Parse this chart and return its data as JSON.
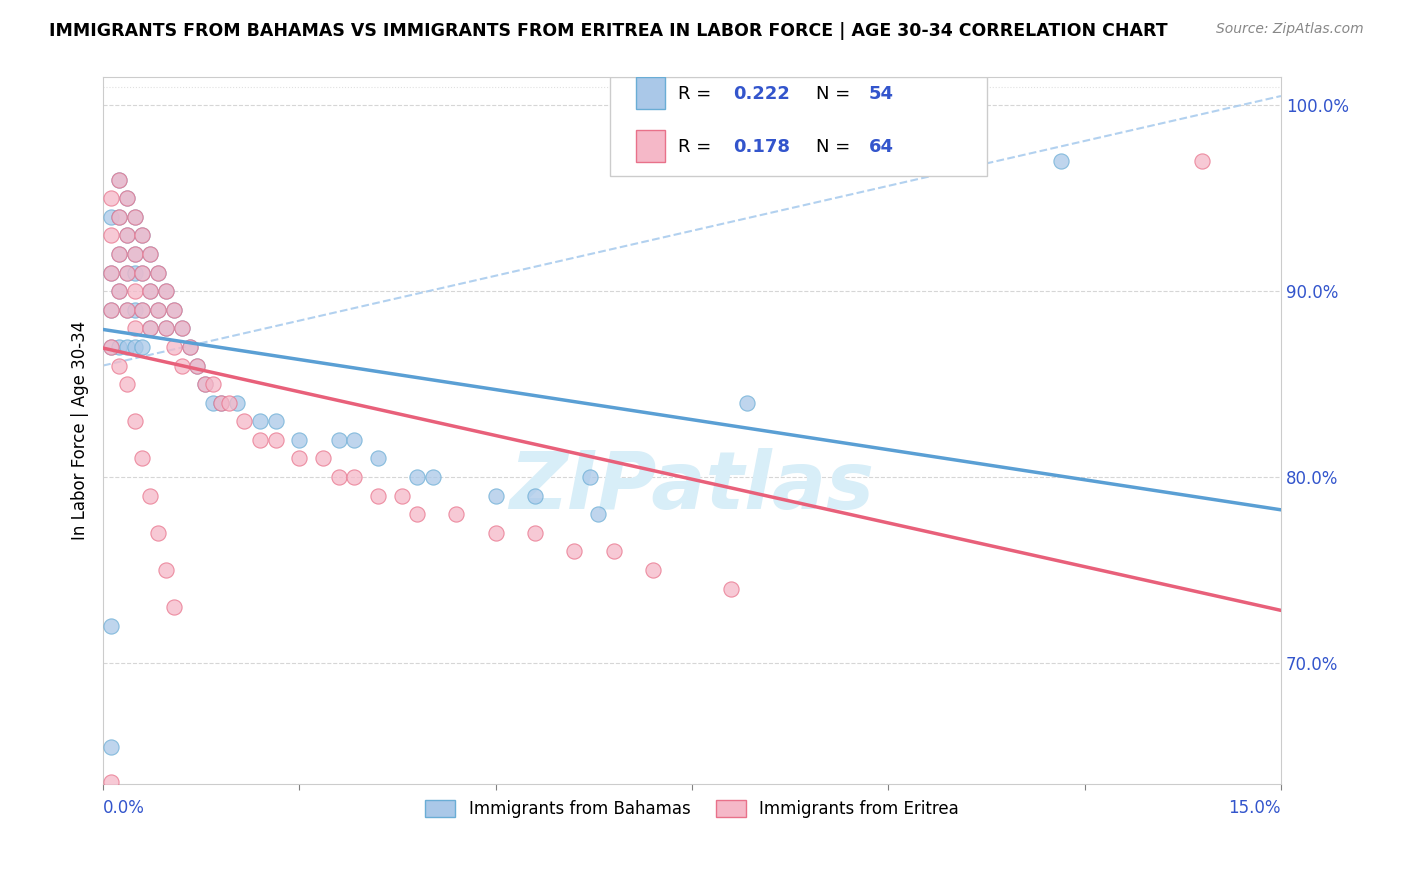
{
  "title": "IMMIGRANTS FROM BAHAMAS VS IMMIGRANTS FROM ERITREA IN LABOR FORCE | AGE 30-34 CORRELATION CHART",
  "source": "Source: ZipAtlas.com",
  "ylabel": "In Labor Force | Age 30-34",
  "xmin": 0.0,
  "xmax": 0.15,
  "ymin": 0.635,
  "ymax": 1.015,
  "y_ticks": [
    0.7,
    0.8,
    0.9,
    1.0
  ],
  "y_tick_labels": [
    "70.0%",
    "80.0%",
    "90.0%",
    "100.0%"
  ],
  "bahamas_R": 0.222,
  "bahamas_N": 54,
  "eritrea_R": 0.178,
  "eritrea_N": 64,
  "bahamas_color": "#aac8e8",
  "eritrea_color": "#f5b8c8",
  "bahamas_edge_color": "#6aadd5",
  "eritrea_edge_color": "#e8718a",
  "bahamas_line_color": "#5a9fd4",
  "eritrea_line_color": "#e8607a",
  "dashed_line_color": "#aaccee",
  "legend_value_color": "#3355cc",
  "watermark_color": "#d8eef8",
  "bahamas_x": [
    0.001,
    0.001,
    0.001,
    0.001,
    0.002,
    0.002,
    0.002,
    0.002,
    0.002,
    0.003,
    0.003,
    0.003,
    0.003,
    0.003,
    0.004,
    0.004,
    0.004,
    0.004,
    0.004,
    0.005,
    0.005,
    0.005,
    0.005,
    0.006,
    0.006,
    0.006,
    0.007,
    0.007,
    0.008,
    0.008,
    0.009,
    0.01,
    0.011,
    0.012,
    0.013,
    0.014,
    0.015,
    0.017,
    0.02,
    0.022,
    0.025,
    0.03,
    0.032,
    0.035,
    0.04,
    0.042,
    0.05,
    0.055,
    0.062,
    0.063,
    0.082,
    0.001,
    0.122,
    0.001
  ],
  "bahamas_y": [
    0.94,
    0.91,
    0.89,
    0.87,
    0.96,
    0.94,
    0.92,
    0.9,
    0.87,
    0.95,
    0.93,
    0.91,
    0.89,
    0.87,
    0.94,
    0.92,
    0.91,
    0.89,
    0.87,
    0.93,
    0.91,
    0.89,
    0.87,
    0.92,
    0.9,
    0.88,
    0.91,
    0.89,
    0.9,
    0.88,
    0.89,
    0.88,
    0.87,
    0.86,
    0.85,
    0.84,
    0.84,
    0.84,
    0.83,
    0.83,
    0.82,
    0.82,
    0.82,
    0.81,
    0.8,
    0.8,
    0.79,
    0.79,
    0.8,
    0.78,
    0.84,
    0.655,
    0.97,
    0.72
  ],
  "eritrea_x": [
    0.001,
    0.001,
    0.001,
    0.001,
    0.002,
    0.002,
    0.002,
    0.002,
    0.003,
    0.003,
    0.003,
    0.003,
    0.004,
    0.004,
    0.004,
    0.004,
    0.005,
    0.005,
    0.005,
    0.006,
    0.006,
    0.006,
    0.007,
    0.007,
    0.008,
    0.008,
    0.009,
    0.009,
    0.01,
    0.01,
    0.011,
    0.012,
    0.013,
    0.014,
    0.015,
    0.016,
    0.018,
    0.02,
    0.022,
    0.025,
    0.028,
    0.03,
    0.032,
    0.035,
    0.038,
    0.04,
    0.045,
    0.05,
    0.055,
    0.06,
    0.065,
    0.07,
    0.08,
    0.001,
    0.002,
    0.003,
    0.004,
    0.005,
    0.006,
    0.007,
    0.008,
    0.009,
    0.001,
    0.14
  ],
  "eritrea_y": [
    0.95,
    0.93,
    0.91,
    0.89,
    0.96,
    0.94,
    0.92,
    0.9,
    0.95,
    0.93,
    0.91,
    0.89,
    0.94,
    0.92,
    0.9,
    0.88,
    0.93,
    0.91,
    0.89,
    0.92,
    0.9,
    0.88,
    0.91,
    0.89,
    0.9,
    0.88,
    0.89,
    0.87,
    0.88,
    0.86,
    0.87,
    0.86,
    0.85,
    0.85,
    0.84,
    0.84,
    0.83,
    0.82,
    0.82,
    0.81,
    0.81,
    0.8,
    0.8,
    0.79,
    0.79,
    0.78,
    0.78,
    0.77,
    0.77,
    0.76,
    0.76,
    0.75,
    0.74,
    0.87,
    0.86,
    0.85,
    0.83,
    0.81,
    0.79,
    0.77,
    0.75,
    0.73,
    0.636,
    0.97
  ],
  "dashed_line_x": [
    0.0,
    0.15
  ],
  "dashed_line_y": [
    0.86,
    1.005
  ]
}
